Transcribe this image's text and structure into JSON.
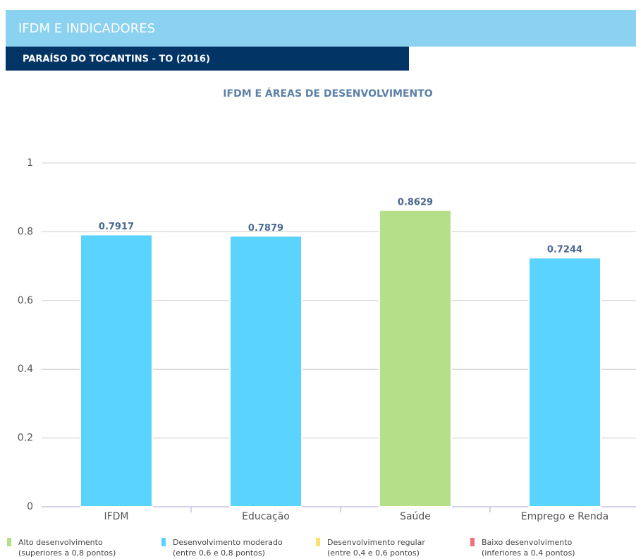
{
  "header": {
    "title": "IFDM E INDICADORES",
    "subtitle": "PARAÍSO DO TOCANTINS - TO (2016)"
  },
  "chart_data": {
    "type": "bar",
    "title": "IFDM E ÁREAS DE DESENVOLVIMENTO",
    "categories": [
      "IFDM",
      "Educação",
      "Saúde",
      "Emprego e Renda"
    ],
    "values": [
      0.7917,
      0.7879,
      0.8629,
      0.7244
    ],
    "colors": [
      "#5bd3ff",
      "#5bd3ff",
      "#b6df8a",
      "#5bd3ff"
    ],
    "ylim": [
      0,
      1
    ],
    "yticks": [
      0,
      0.2,
      0.4,
      0.6,
      0.8,
      1
    ],
    "grid": true,
    "legend": [
      {
        "label": "Alto desenvolvimento",
        "note": "(superiores a 0,8 pontos)",
        "color": "#b6df8a"
      },
      {
        "label": "Desenvolvimento moderado",
        "note": "(entre 0,6 e 0,8 pontos)",
        "color": "#5bd3ff"
      },
      {
        "label": "Desenvolvimento regular",
        "note": "(entre 0,4 e 0,6 pontos)",
        "color": "#ffdf70"
      },
      {
        "label": "Baixo desenvolvimento",
        "note": "(inferiores a 0,4 pontos)",
        "color": "#f0707a"
      }
    ]
  }
}
